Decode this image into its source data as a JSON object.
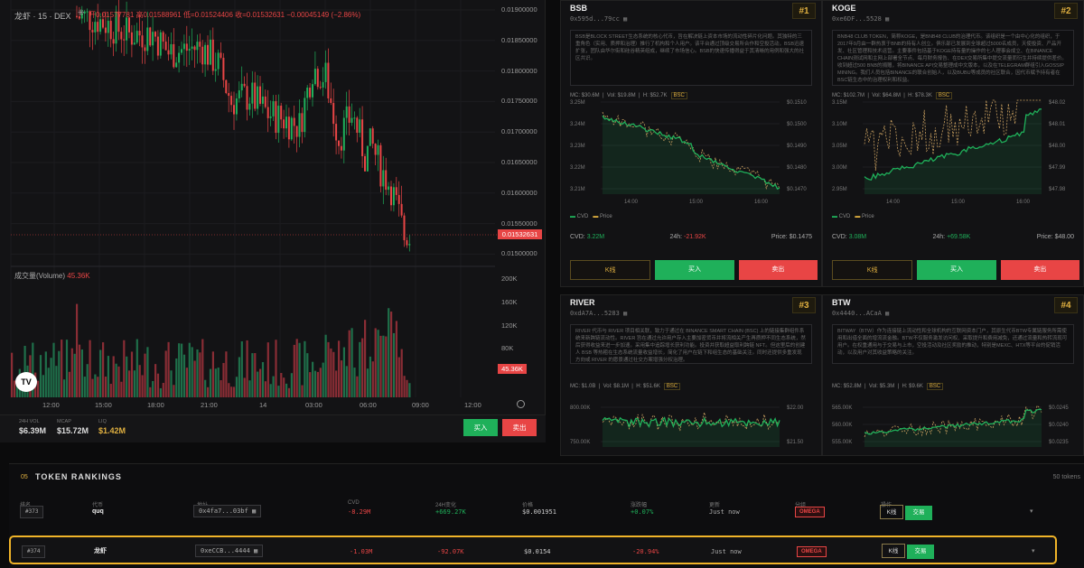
{
  "chart": {
    "symbol": "龙虾 · 15 · DEX",
    "ohlc": "开0.01577781 高0.01588961 低=0.01524406 收=0.01532631 −0.00045149 (−2.86%)",
    "price_levels": [
      "0.01900000",
      "0.01850000",
      "0.01800000",
      "0.01750000",
      "0.01700000",
      "0.01650000",
      "0.01600000",
      "0.01550000",
      "0.01500000"
    ],
    "current_price": "0.01532631",
    "volume_label": "成交量(Volume)",
    "volume_value": "45.36K",
    "volume_levels": [
      "200K",
      "160K",
      "120K",
      "80K",
      "40K"
    ],
    "volume_current": "45.36K",
    "time_labels": [
      "12:00",
      "15:00",
      "18:00",
      "21:00",
      "14",
      "03:00",
      "06:00",
      "09:00",
      "12:00"
    ],
    "logo": "TV"
  },
  "stats": [
    {
      "label": "24H VOL",
      "value": "$6.39M"
    },
    {
      "label": "MCAP",
      "value": "$15.72M"
    },
    {
      "label": "LIQ",
      "value": "$1.42M"
    }
  ],
  "actions": {
    "buy": "买入",
    "sell": "卖出"
  },
  "cards": [
    {
      "name": "BSB",
      "addr": "0x595d...79cc ▦",
      "rank": "#1",
      "desc": "BSB是BLOCK STREET生态系统的核心代币，旨在解决链上资本市场的流动性碎片化问题。其独特的三重角色（实用、质押和治理）推行了机构和个人用户。该平台通过顶级交易所合作和空投活动，BSB迅速扩张，团队由华尔街和硅谷精英组成，继续了市场信心。BSB的快速传播得益于其清晰的用例和强大的社区共识。",
      "mc": "MC: $30.6M",
      "vol": "Vol: $19.8M",
      "h": "H: $52.7K",
      "chain": "BSC",
      "yl": [
        "3.25M",
        "3.24M",
        "3.23M",
        "3.22M",
        "3.21M"
      ],
      "yr": [
        "$0.1510",
        "$0.1500",
        "$0.1490",
        "$0.1480",
        "$0.1470"
      ],
      "xs": [
        "14:00",
        "15:00",
        "16:00"
      ],
      "cvd": "3.22M",
      "chg": "-21.92K",
      "price": "$0.1475",
      "legend_cvd": "CVD",
      "legend_price": "Price",
      "cvd_label": "CVD:",
      "chg_label": "24h:",
      "price_label": "Price:",
      "k": "K线",
      "buy": "买入",
      "sell": "卖出"
    },
    {
      "name": "KOGE",
      "addr": "0xe6DF...5528 ▦",
      "rank": "#2",
      "desc": "BNB48 CLUB TOKEN，简称KOGE，是BNB48 CLUB的治理代币。该组织是一个由中心化的组织，于2017年9月由一群热衷于BNB的持有人创立。俱乐部已发展到全球超过5000名成员，天使投资、产品开发、社区管理和技术运营。主要事件包括基于KOGE持有量的操作的七人理事会成立、在BINANCE CHAIN测试网和主网上部署全节点、每月财务报告、在DEX交易所集中提交流量而衍生并持续提供差价。收到超过500 BNB的捐赠，将BINANCE API交易整理成中文版本，以及在TELEGRAM群组引入GOSSIP MINING。我们人员包括BINANCE的联合创始人，以及BUBU等成员的社区联合，因代币赋予持有者在BSC链生态中的治理权利和权益。",
      "mc": "MC: $102.7M",
      "vol": "Vol: $64.8M",
      "h": "H: $78.3K",
      "chain": "BSC",
      "yl": [
        "3.15M",
        "3.10M",
        "3.05M",
        "3.00M",
        "2.95M"
      ],
      "yr": [
        "$48.02",
        "$48.01",
        "$48.00",
        "$47.99",
        "$47.98"
      ],
      "xs": [
        "14:00",
        "15:00",
        "16:00"
      ],
      "cvd": "3.08M",
      "chg": "+69.58K",
      "price": "$48.00",
      "legend_cvd": "CVD",
      "legend_price": "Price",
      "cvd_label": "CVD:",
      "chg_label": "24h:",
      "price_label": "Price:",
      "k": "K线",
      "buy": "买入",
      "sell": "卖出"
    },
    {
      "name": "RIVER",
      "addr": "0xdA7A...5283 ▦",
      "rank": "#3",
      "desc": "RIVER 代币与 RIVER 项目相关联，致力于通过在 BINANCE SMART CHAIN (BSC) 上的链接集群组件系统来新跨链流动性。RIVER 旨在通过允许用户存入主要加密货币并将流相关产生再质押不同生态系统，然后获得收益来进一步加速。采用集中追踪增长获利功能。投资并获取超益取利跨链 NFT。但这里后的创建人 BSB 等热粗在生态系统流量收益增长，简化了用户在链下和组生态的基础关注。同时还提供多重发现方向或 RIVER 的愿景通过社交方案增强分权治理。",
      "mc": "MC: $1.0B",
      "vol": "Vol: $8.1M",
      "h": "H: $51.6K",
      "chain": "BSC",
      "yl": [
        "800.00K",
        "750.00K"
      ],
      "yr": [
        "$22.00",
        "$21.50"
      ],
      "xs": [],
      "cvd": "",
      "chg": "",
      "price": "",
      "legend_cvd": "",
      "legend_price": "",
      "cvd_label": "",
      "chg_label": "",
      "price_label": "",
      "k": "",
      "buy": "",
      "sell": ""
    },
    {
      "name": "BTW",
      "addr": "0x4440...ACaA ▦",
      "rank": "#4",
      "desc": "BITWAY（BTW）作为连接链上流动性和全球机构的互联网资本门户，其原生代币BTW专属链服务所需使用和出借全面的增流流金融。BTW不仅服务激发访问权、采取提升和费用减免，还通过流量和热转流现可用户。在权重通用与于交易与上市，空投活动及社区奖励的推动，特别是MEXC、HTX等平台的促销活动，以及用户对其收益策略的关注。",
      "mc": "MC: $52.8M",
      "vol": "Vol: $5.3M",
      "h": "H: $9.6K",
      "chain": "BSC",
      "yl": [
        "565.00K",
        "560.00K",
        "555.00K"
      ],
      "yr": [
        "$0.0245",
        "$0.0240",
        "$0.0235"
      ],
      "xs": [],
      "cvd": "",
      "chg": "",
      "price": "",
      "legend_cvd": "",
      "legend_price": "",
      "cvd_label": "",
      "chg_label": "",
      "price_label": "",
      "k": "",
      "buy": "",
      "sell": ""
    }
  ],
  "rankings": {
    "num": "05",
    "title": "TOKEN RANKINGS",
    "count": "50 tokens",
    "headers": [
      "排名",
      "代币",
      "地址",
      "CVD",
      "24H变化",
      "价格",
      "涨跌幅",
      "更新",
      "分组",
      "操作"
    ],
    "rows": [
      {
        "rank": "#373",
        "token": "quq",
        "addr": "0x4fa7...03bf ▦",
        "cvd": "-8.29M",
        "chg": "+669.27K",
        "price": "$0.001951",
        "pct": "+0.07%",
        "upd": "Just now",
        "group": "OMEGA",
        "k": "K线",
        "trade": "交易"
      },
      {
        "rank": "#374",
        "token": "龙虾",
        "addr": "0xeCCB...4444 ▦",
        "cvd": "-1.03M",
        "chg": "-92.07K",
        "price": "$0.0154",
        "pct": "-20.94%",
        "upd": "Just now",
        "group": "OMEGA",
        "k": "K线",
        "trade": "交易"
      }
    ]
  },
  "colors": {
    "up": "#1fb05a",
    "down": "#e84545",
    "accent": "#e0b040",
    "highlight": "#f0b429"
  }
}
